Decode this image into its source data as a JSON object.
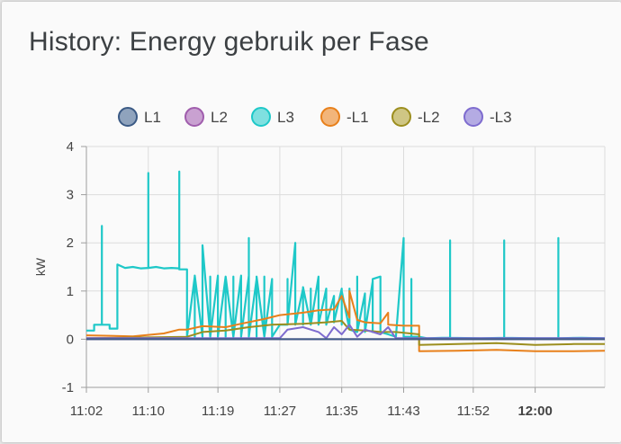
{
  "card": {
    "title": "History: Energy gebruik per Fase"
  },
  "chart_data": {
    "type": "line",
    "title": "History: Energy gebruik per Fase",
    "ylabel": "kW",
    "xlabel": "",
    "ylim": [
      -1,
      4
    ],
    "yticks": [
      4,
      3,
      2,
      1,
      0,
      -1
    ],
    "xlim": [
      "11:02",
      "12:09"
    ],
    "xticks": [
      {
        "label": "11:02",
        "t": "11:02",
        "bold": false
      },
      {
        "label": "11:10",
        "t": "11:10",
        "bold": false
      },
      {
        "label": "11:19",
        "t": "11:19",
        "bold": false
      },
      {
        "label": "11:27",
        "t": "11:27",
        "bold": false
      },
      {
        "label": "11:35",
        "t": "11:35",
        "bold": false
      },
      {
        "label": "11:43",
        "t": "11:43",
        "bold": false
      },
      {
        "label": "11:52",
        "t": "11:52",
        "bold": false
      },
      {
        "label": "12:00",
        "t": "12:00",
        "bold": true
      }
    ],
    "grid": true,
    "legend_position": "top",
    "series": [
      {
        "name": "L1",
        "color": "#3b5a85",
        "fill": "#8fa3bd",
        "points": [
          [
            "11:02",
            0
          ],
          [
            "12:09",
            0
          ]
        ]
      },
      {
        "name": "L2",
        "color": "#a05dad",
        "fill": "#c9a1d1",
        "points": [
          [
            "11:02",
            0
          ],
          [
            "12:09",
            0
          ]
        ]
      },
      {
        "name": "L3",
        "color": "#1ec8c8",
        "fill": "#7fe0e0",
        "points": [
          [
            "11:02",
            0.18
          ],
          [
            "11:03",
            0.18
          ],
          [
            "11:03",
            0.3
          ],
          [
            "11:04",
            0.3
          ],
          [
            "11:04",
            2.35
          ],
          [
            "11:04",
            0.3
          ],
          [
            "11:05",
            0.3
          ],
          [
            "11:05",
            0.22
          ],
          [
            "11:06",
            0.22
          ],
          [
            "11:06",
            1.55
          ],
          [
            "11:07",
            1.48
          ],
          [
            "11:08",
            1.5
          ],
          [
            "11:09",
            1.47
          ],
          [
            "11:10",
            1.48
          ],
          [
            "11:10",
            3.45
          ],
          [
            "11:10",
            1.48
          ],
          [
            "11:11",
            1.5
          ],
          [
            "11:12",
            1.47
          ],
          [
            "11:13",
            1.48
          ],
          [
            "11:14",
            1.47
          ],
          [
            "11:14",
            3.48
          ],
          [
            "11:14",
            1.45
          ],
          [
            "11:15",
            1.45
          ],
          [
            "11:15",
            0.05
          ],
          [
            "11:15",
            1.35
          ],
          [
            "11:15",
            0.05
          ],
          [
            "11:16",
            1.3
          ],
          [
            "11:16",
            0.05
          ],
          [
            "11:16",
            1.32
          ],
          [
            "11:17",
            0.05
          ],
          [
            "11:17",
            1.3
          ],
          [
            "11:17",
            0.05
          ],
          [
            "11:17",
            1.95
          ],
          [
            "11:18",
            0.05
          ],
          [
            "11:18",
            1.3
          ],
          [
            "11:18",
            0.05
          ],
          [
            "11:19",
            1.32
          ],
          [
            "11:19",
            0.05
          ],
          [
            "11:20",
            1.3
          ],
          [
            "11:20",
            0.05
          ],
          [
            "11:20",
            1.3
          ],
          [
            "11:21",
            0.05
          ],
          [
            "11:21",
            1.3
          ],
          [
            "11:21",
            0.05
          ],
          [
            "11:22",
            1.32
          ],
          [
            "11:22",
            0.05
          ],
          [
            "11:23",
            1.32
          ],
          [
            "11:23",
            0.05
          ],
          [
            "11:23",
            2.1
          ],
          [
            "11:23",
            0.05
          ],
          [
            "11:24",
            1.25
          ],
          [
            "11:24",
            0.05
          ],
          [
            "11:24",
            1.3
          ],
          [
            "11:25",
            0.05
          ],
          [
            "11:25",
            1.3
          ],
          [
            "11:25",
            0.05
          ],
          [
            "11:26",
            1.25
          ],
          [
            "11:26",
            0.05
          ],
          [
            "11:27",
            0.3
          ],
          [
            "11:28",
            0.3
          ],
          [
            "11:28",
            1.25
          ],
          [
            "11:28",
            0.3
          ],
          [
            "11:29",
            2.0
          ],
          [
            "11:29",
            0.3
          ],
          [
            "11:30",
            1.05
          ],
          [
            "11:30",
            0.3
          ],
          [
            "11:30",
            1.08
          ],
          [
            "11:31",
            0.3
          ],
          [
            "11:31",
            1.05
          ],
          [
            "11:31",
            0.3
          ],
          [
            "11:32",
            1.3
          ],
          [
            "11:32",
            0.3
          ],
          [
            "11:33",
            1.05
          ],
          [
            "11:33",
            0.3
          ],
          [
            "11:34",
            0.9
          ],
          [
            "11:34",
            0.35
          ],
          [
            "11:35",
            1.05
          ],
          [
            "11:35",
            0.3
          ],
          [
            "11:35",
            1.0
          ],
          [
            "11:36",
            0.2
          ],
          [
            "11:36",
            1.05
          ],
          [
            "11:36",
            0.2
          ],
          [
            "11:37",
            0.15
          ],
          [
            "11:37",
            1.3
          ],
          [
            "11:37",
            0.15
          ],
          [
            "11:38",
            0.95
          ],
          [
            "11:38",
            0.15
          ],
          [
            "11:39",
            1.2
          ],
          [
            "11:39",
            0.15
          ],
          [
            "11:39",
            1.25
          ],
          [
            "11:40",
            1.3
          ],
          [
            "11:40",
            0.15
          ],
          [
            "11:41",
            0.1
          ],
          [
            "11:42",
            0.05
          ],
          [
            "11:43",
            2.1
          ],
          [
            "11:43",
            0.05
          ],
          [
            "11:44",
            0.05
          ],
          [
            "11:44",
            1.25
          ],
          [
            "11:44",
            0.05
          ],
          [
            "11:45",
            0.05
          ],
          [
            "11:46",
            0.02
          ],
          [
            "11:48",
            0.03
          ],
          [
            "11:49",
            0.03
          ],
          [
            "11:49",
            2.05
          ],
          [
            "11:49",
            0.03
          ],
          [
            "11:53",
            0.02
          ],
          [
            "11:56",
            0.03
          ],
          [
            "11:56",
            2.05
          ],
          [
            "11:56",
            0.03
          ],
          [
            "12:00",
            0.02
          ],
          [
            "12:03",
            0.02
          ],
          [
            "12:03",
            2.1
          ],
          [
            "12:03",
            0.02
          ],
          [
            "12:06",
            0.03
          ],
          [
            "12:09",
            0.02
          ]
        ]
      },
      {
        "name": "-L1",
        "color": "#e8801b",
        "fill": "#f2b57a",
        "points": [
          [
            "11:02",
            0.08
          ],
          [
            "11:08",
            0.06
          ],
          [
            "11:12",
            0.12
          ],
          [
            "11:14",
            0.2
          ],
          [
            "11:15",
            0.2
          ],
          [
            "11:17",
            0.27
          ],
          [
            "11:20",
            0.25
          ],
          [
            "11:22",
            0.32
          ],
          [
            "11:25",
            0.42
          ],
          [
            "11:27",
            0.5
          ],
          [
            "11:30",
            0.55
          ],
          [
            "11:32",
            0.6
          ],
          [
            "11:34",
            0.62
          ],
          [
            "11:35",
            0.9
          ],
          [
            "11:36",
            0.45
          ],
          [
            "11:36",
            1.0
          ],
          [
            "11:37",
            0.4
          ],
          [
            "11:38",
            0.35
          ],
          [
            "11:40",
            0.33
          ],
          [
            "11:41",
            0.55
          ],
          [
            "11:41",
            0.3
          ],
          [
            "11:43",
            0.28
          ],
          [
            "11:44",
            0.28
          ],
          [
            "11:45",
            0.28
          ],
          [
            "11:45",
            -0.25
          ],
          [
            "11:50",
            -0.24
          ],
          [
            "11:55",
            -0.22
          ],
          [
            "12:00",
            -0.25
          ],
          [
            "12:05",
            -0.25
          ],
          [
            "12:09",
            -0.24
          ]
        ]
      },
      {
        "name": "-L2",
        "color": "#9c8e1e",
        "fill": "#cfc684",
        "points": [
          [
            "11:02",
            0.02
          ],
          [
            "11:15",
            0.05
          ],
          [
            "11:17",
            0.15
          ],
          [
            "11:20",
            0.18
          ],
          [
            "11:23",
            0.25
          ],
          [
            "11:26",
            0.3
          ],
          [
            "11:30",
            0.32
          ],
          [
            "11:33",
            0.35
          ],
          [
            "11:35",
            0.38
          ],
          [
            "11:36",
            0.2
          ],
          [
            "11:38",
            0.18
          ],
          [
            "11:40",
            0.15
          ],
          [
            "11:42",
            0.15
          ],
          [
            "11:45",
            0.1
          ],
          [
            "11:45",
            -0.12
          ],
          [
            "11:50",
            -0.1
          ],
          [
            "11:55",
            -0.08
          ],
          [
            "12:00",
            -0.12
          ],
          [
            "12:05",
            -0.1
          ],
          [
            "12:09",
            -0.1
          ]
        ]
      },
      {
        "name": "-L3",
        "color": "#7e6ccf",
        "fill": "#b4abe3",
        "points": [
          [
            "11:02",
            0.02
          ],
          [
            "11:27",
            0.02
          ],
          [
            "11:28",
            0.2
          ],
          [
            "11:30",
            0.25
          ],
          [
            "11:32",
            0.15
          ],
          [
            "11:33",
            0.02
          ],
          [
            "11:34",
            0.25
          ],
          [
            "11:35",
            0.1
          ],
          [
            "11:36",
            0.3
          ],
          [
            "11:37",
            0.05
          ],
          [
            "11:38",
            0.2
          ],
          [
            "11:40",
            0.1
          ],
          [
            "11:41",
            0.25
          ],
          [
            "11:42",
            0.02
          ],
          [
            "12:09",
            0.02
          ]
        ]
      }
    ]
  }
}
